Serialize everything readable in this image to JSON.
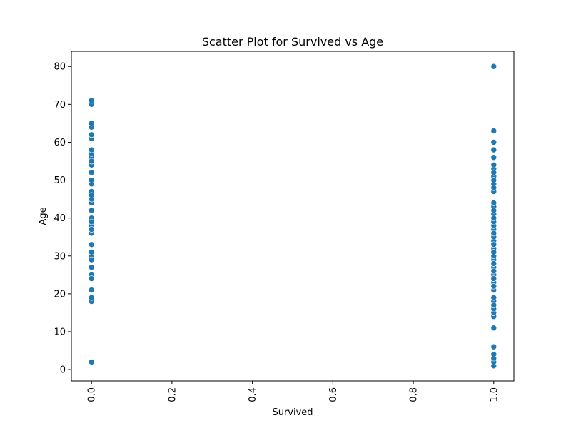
{
  "chart_data": {
    "type": "scatter",
    "title": "Scatter Plot for Survived vs Age",
    "xlabel": "Survived",
    "ylabel": "Age",
    "xlim": [
      -0.05,
      1.05
    ],
    "ylim": [
      -3,
      84
    ],
    "xticks": [
      0.0,
      0.2,
      0.4,
      0.6,
      0.8,
      1.0
    ],
    "xtick_labels": [
      "0.0",
      "0.2",
      "0.4",
      "0.6",
      "0.8",
      "1.0"
    ],
    "xtick_rotation": 90,
    "yticks": [
      0,
      10,
      20,
      30,
      40,
      50,
      60,
      70,
      80
    ],
    "ytick_labels": [
      "0",
      "10",
      "20",
      "30",
      "40",
      "50",
      "60",
      "70",
      "80"
    ],
    "grid": false,
    "color": "#1f77b4",
    "series": [
      {
        "x": [
          0,
          0,
          0,
          0,
          0,
          0,
          0,
          0,
          0,
          0,
          0,
          0,
          0,
          0,
          0,
          0,
          0,
          0,
          0,
          0,
          0,
          0,
          0,
          0,
          0,
          0,
          0,
          0,
          0,
          0,
          0,
          0,
          0,
          0,
          0,
          0,
          0,
          0,
          0,
          0,
          0,
          0,
          0,
          0,
          0
        ],
        "y": [
          2,
          18,
          19,
          21,
          24,
          25,
          27,
          29,
          30,
          31,
          33,
          36,
          37,
          38,
          39,
          40,
          42,
          44,
          45,
          46,
          47,
          49,
          50,
          52,
          54,
          55,
          56,
          57,
          58,
          61,
          62,
          64,
          65,
          70,
          71,
          18,
          19,
          24,
          29,
          37,
          39,
          45,
          46,
          55,
          62
        ]
      },
      {
        "x": [
          1,
          1,
          1,
          1,
          1,
          1,
          1,
          1,
          1,
          1,
          1,
          1,
          1,
          1,
          1,
          1,
          1,
          1,
          1,
          1,
          1,
          1,
          1,
          1,
          1,
          1,
          1,
          1,
          1,
          1,
          1,
          1,
          1,
          1,
          1,
          1,
          1,
          1,
          1,
          1,
          1,
          1,
          1,
          1,
          1,
          1,
          1,
          1,
          1,
          1,
          1,
          1,
          1,
          1,
          1,
          1,
          1,
          1,
          1,
          1,
          1,
          1,
          1,
          1,
          1,
          1,
          1
        ],
        "y": [
          1,
          2,
          3,
          4,
          6,
          11,
          14,
          15,
          16,
          17,
          18,
          19,
          21,
          22,
          23,
          24,
          25,
          26,
          27,
          28,
          29,
          30,
          31,
          32,
          33,
          34,
          35,
          36,
          37,
          38,
          39,
          40,
          41,
          42,
          43,
          44,
          47,
          48,
          49,
          50,
          51,
          52,
          53,
          54,
          56,
          58,
          60,
          63,
          80,
          15,
          16,
          17,
          22,
          24,
          26,
          28,
          31,
          33,
          35,
          36,
          38,
          39,
          40,
          42,
          48,
          50,
          52
        ]
      }
    ]
  }
}
